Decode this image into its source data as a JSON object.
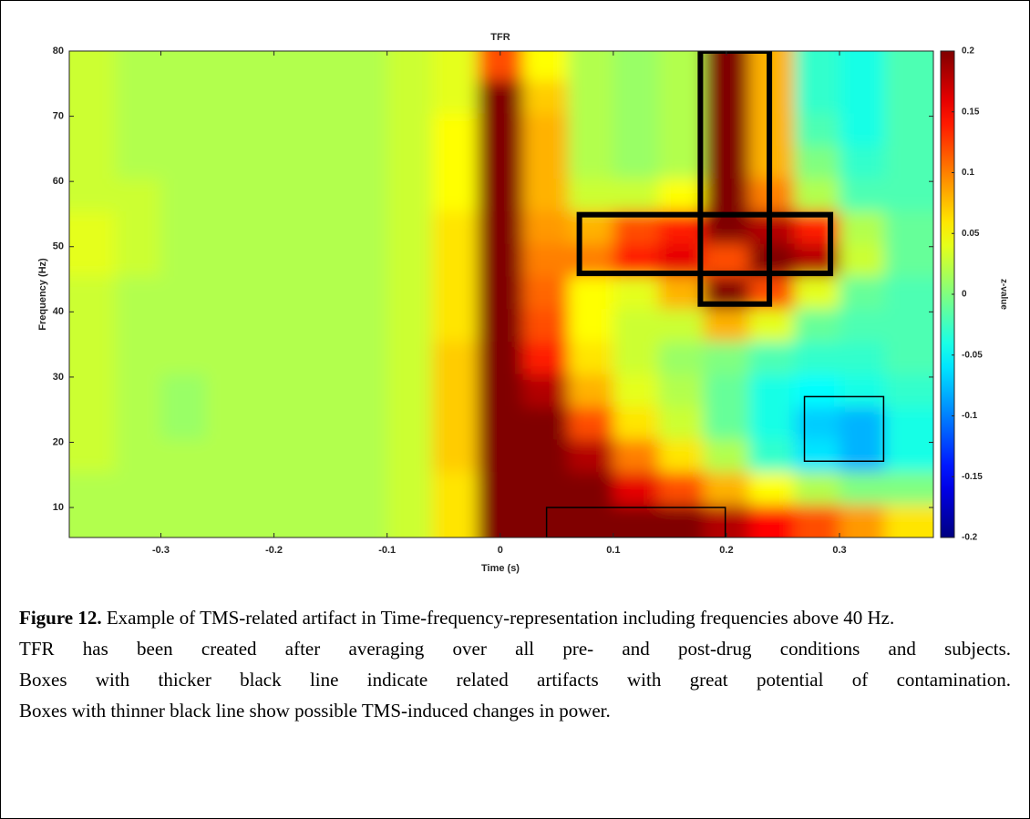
{
  "chart_data": {
    "type": "heatmap",
    "title": "TFR",
    "x_label": "Time (s)",
    "y_label": "Frequency (Hz)",
    "colorbar_label": "z-value",
    "xlim": [
      -0.381,
      0.383
    ],
    "ylim": [
      5.4,
      80
    ],
    "xticks": [
      -0.3,
      -0.2,
      -0.1,
      0,
      0.1,
      0.2,
      0.3
    ],
    "yticks": [
      10,
      20,
      30,
      40,
      50,
      60,
      70,
      80
    ],
    "clim": [
      -0.2,
      0.2
    ],
    "cticks": [
      -0.2,
      -0.15,
      -0.1,
      -0.05,
      0,
      0.05,
      0.1,
      0.15,
      0.2
    ],
    "colormap": "jet",
    "x": [
      -0.36,
      -0.32,
      -0.28,
      -0.24,
      -0.2,
      -0.16,
      -0.12,
      -0.08,
      -0.04,
      0,
      0.04,
      0.08,
      0.12,
      0.16,
      0.2,
      0.24,
      0.28,
      0.32,
      0.36
    ],
    "y": [
      8,
      13,
      18,
      23,
      28,
      33,
      38,
      43,
      48,
      53,
      58,
      63,
      68,
      73,
      78
    ],
    "z": [
      [
        0.02,
        0.02,
        0.02,
        0.02,
        0.02,
        0.02,
        0.02,
        0.03,
        0.06,
        0.2,
        0.2,
        0.2,
        0.2,
        0.2,
        0.18,
        0.15,
        0.12,
        0.09,
        0.06
      ],
      [
        0.02,
        0.02,
        0.02,
        0.02,
        0.02,
        0.02,
        0.02,
        0.03,
        0.06,
        0.2,
        0.2,
        0.2,
        0.16,
        0.12,
        0.08,
        0.05,
        0.02,
        0.0,
        0.0
      ],
      [
        0.03,
        0.02,
        0.02,
        0.02,
        0.02,
        0.02,
        0.02,
        0.03,
        0.07,
        0.2,
        0.2,
        0.18,
        0.1,
        0.06,
        0.02,
        -0.03,
        -0.06,
        -0.08,
        -0.04
      ],
      [
        0.03,
        0.02,
        0.01,
        0.02,
        0.02,
        0.02,
        0.02,
        0.03,
        0.07,
        0.2,
        0.2,
        0.12,
        0.06,
        0.03,
        -0.01,
        -0.04,
        -0.07,
        -0.08,
        -0.04
      ],
      [
        0.03,
        0.02,
        0.01,
        0.02,
        0.02,
        0.02,
        0.02,
        0.03,
        0.07,
        0.2,
        0.18,
        0.08,
        0.04,
        0.02,
        -0.01,
        -0.04,
        -0.05,
        -0.04,
        -0.03
      ],
      [
        0.03,
        0.02,
        0.02,
        0.02,
        0.02,
        0.02,
        0.02,
        0.03,
        0.07,
        0.2,
        0.14,
        0.06,
        0.03,
        0.01,
        0.0,
        -0.02,
        -0.03,
        -0.03,
        -0.02
      ],
      [
        0.03,
        0.02,
        0.02,
        0.02,
        0.02,
        0.02,
        0.02,
        0.03,
        0.06,
        0.2,
        0.12,
        0.05,
        0.03,
        0.03,
        0.08,
        0.04,
        -0.01,
        -0.02,
        -0.02
      ],
      [
        0.03,
        0.02,
        0.02,
        0.02,
        0.02,
        0.02,
        0.02,
        0.03,
        0.06,
        0.2,
        0.11,
        0.05,
        0.04,
        0.08,
        0.2,
        0.12,
        0.04,
        -0.01,
        -0.02
      ],
      [
        0.04,
        0.03,
        0.02,
        0.02,
        0.02,
        0.02,
        0.02,
        0.03,
        0.06,
        0.2,
        0.1,
        0.1,
        0.14,
        0.16,
        0.12,
        0.2,
        0.18,
        0.03,
        -0.01
      ],
      [
        0.04,
        0.03,
        0.02,
        0.02,
        0.02,
        0.02,
        0.02,
        0.03,
        0.06,
        0.2,
        0.09,
        0.08,
        0.12,
        0.14,
        0.2,
        0.18,
        0.14,
        0.02,
        -0.01
      ],
      [
        0.03,
        0.03,
        0.02,
        0.02,
        0.02,
        0.02,
        0.02,
        0.03,
        0.05,
        0.2,
        0.08,
        0.03,
        0.03,
        0.05,
        0.2,
        0.1,
        0.02,
        -0.02,
        -0.02
      ],
      [
        0.03,
        0.02,
        0.02,
        0.02,
        0.02,
        0.02,
        0.02,
        0.03,
        0.05,
        0.2,
        0.08,
        0.02,
        0.01,
        0.02,
        0.2,
        0.08,
        0.0,
        -0.03,
        -0.02
      ],
      [
        0.03,
        0.02,
        0.02,
        0.02,
        0.02,
        0.02,
        0.02,
        0.03,
        0.05,
        0.2,
        0.08,
        0.02,
        0.01,
        0.02,
        0.2,
        0.08,
        -0.02,
        -0.04,
        -0.02
      ],
      [
        0.03,
        0.02,
        0.02,
        0.02,
        0.02,
        0.02,
        0.02,
        0.03,
        0.04,
        0.2,
        0.07,
        0.02,
        0.01,
        0.02,
        0.2,
        0.08,
        -0.03,
        -0.04,
        -0.02
      ],
      [
        0.03,
        0.02,
        0.02,
        0.02,
        0.02,
        0.02,
        0.02,
        0.03,
        0.04,
        0.12,
        0.05,
        0.02,
        0.01,
        0.02,
        0.2,
        0.08,
        -0.03,
        -0.04,
        -0.02
      ]
    ],
    "boxes": [
      {
        "x": [
          0.177,
          0.238
        ],
        "y": [
          41.2,
          80
        ],
        "linewidth": 6
      },
      {
        "x": [
          0.07,
          0.292
        ],
        "y": [
          45.9,
          54.9
        ],
        "linewidth": 6
      },
      {
        "x": [
          0.269,
          0.339
        ],
        "y": [
          17.1,
          27
        ],
        "linewidth": 1.5
      },
      {
        "x": [
          0.041,
          0.199
        ],
        "y": [
          5.4,
          10
        ],
        "linewidth": 1.5
      }
    ]
  },
  "caption": {
    "label": "Figure 12.",
    "text": " Example of TMS-related artifact in Time-frequency-representation including frequencies above 40 Hz.",
    "notes": [
      "TFR has been created after averaging over all pre- and post-drug conditions and subjects.",
      "Boxes with thicker black line indicate related artifacts with great potential of contamination.",
      "Boxes with thinner black line show possible TMS-induced changes in power."
    ]
  }
}
